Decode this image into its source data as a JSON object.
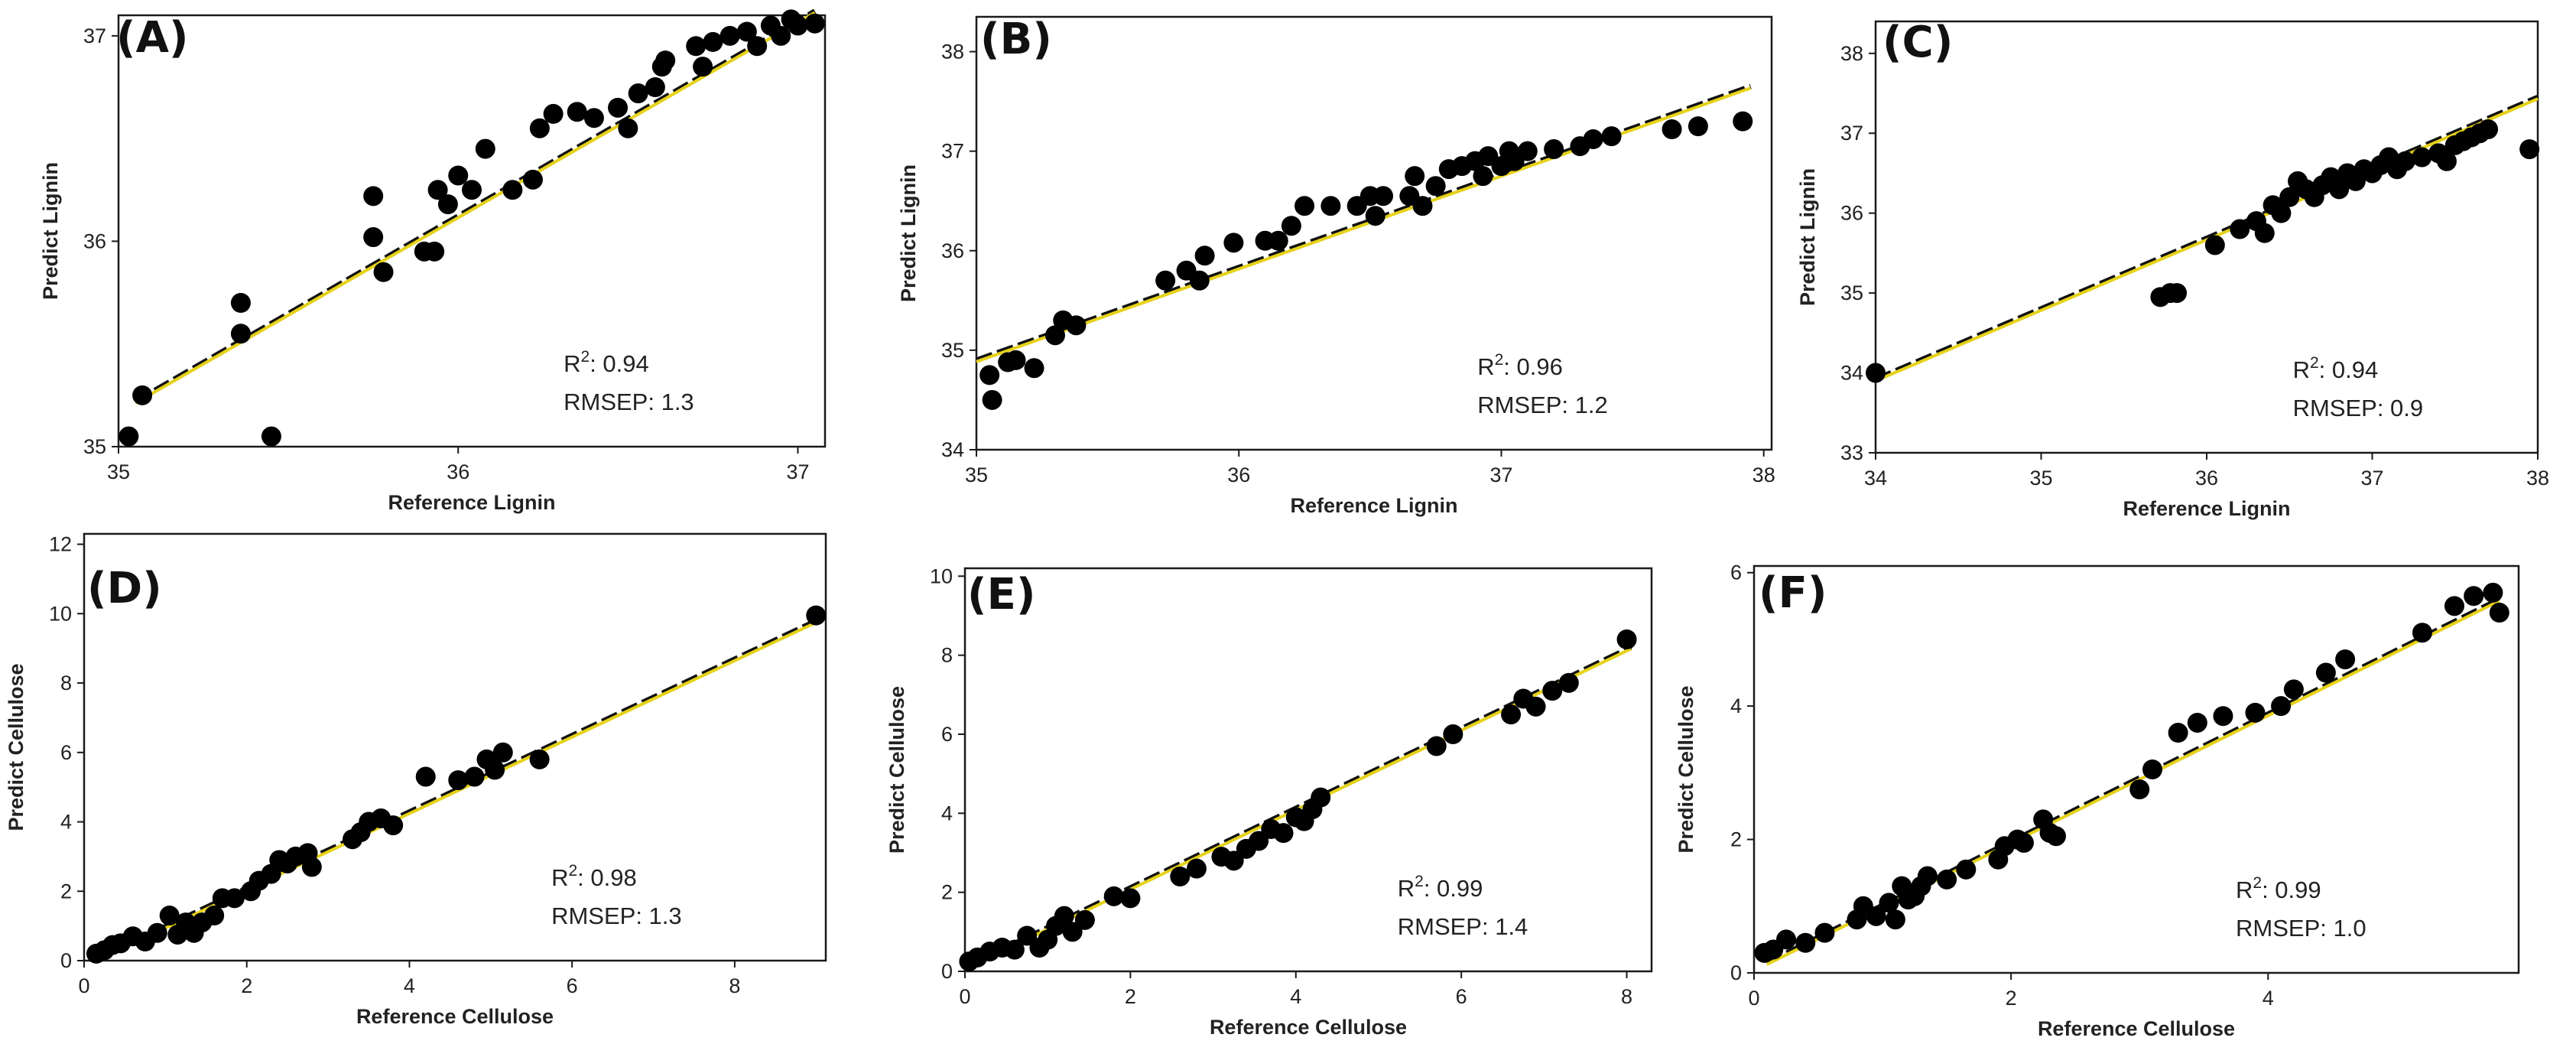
{
  "colors": {
    "points": "#000000",
    "fit_line": "#111111",
    "fit_line_yellow": "#e6d21a"
  },
  "chart_data": [
    {
      "panel": "(A)",
      "type": "scatter",
      "xlabel": "Reference Lignin",
      "ylabel": "Predict Lignin",
      "xlim": [
        35,
        37.08
      ],
      "ylim": [
        35,
        37.1
      ],
      "xticks": [
        "35",
        "36",
        "37"
      ],
      "yticks": [
        "35",
        "36",
        "37"
      ],
      "xtick_values": [
        35,
        36,
        37
      ],
      "ytick_values": [
        35,
        36,
        37
      ],
      "annotation": {
        "r2_label": "R",
        "r2_sup": "2",
        "r2_value": ": 0.94",
        "rmsep": "RMSEP: 1.3"
      },
      "fit_line": [
        [
          35.05,
          35.22
        ],
        [
          37.05,
          37.12
        ]
      ],
      "points": [
        [
          35.03,
          35.05
        ],
        [
          35.07,
          35.25
        ],
        [
          35.36,
          35.7
        ],
        [
          35.36,
          35.55
        ],
        [
          35.45,
          35.05
        ],
        [
          35.75,
          36.22
        ],
        [
          35.75,
          36.02
        ],
        [
          35.78,
          35.85
        ],
        [
          35.9,
          35.95
        ],
        [
          35.93,
          35.95
        ],
        [
          35.94,
          36.25
        ],
        [
          35.97,
          36.18
        ],
        [
          36.0,
          36.32
        ],
        [
          36.04,
          36.25
        ],
        [
          36.08,
          36.45
        ],
        [
          36.16,
          36.25
        ],
        [
          36.22,
          36.3
        ],
        [
          36.24,
          36.55
        ],
        [
          36.28,
          36.62
        ],
        [
          36.35,
          36.63
        ],
        [
          36.4,
          36.6
        ],
        [
          36.47,
          36.65
        ],
        [
          36.5,
          36.55
        ],
        [
          36.53,
          36.72
        ],
        [
          36.58,
          36.75
        ],
        [
          36.6,
          36.85
        ],
        [
          36.61,
          36.88
        ],
        [
          36.7,
          36.95
        ],
        [
          36.72,
          36.85
        ],
        [
          36.75,
          36.97
        ],
        [
          36.8,
          37.0
        ],
        [
          36.85,
          37.02
        ],
        [
          36.88,
          36.95
        ],
        [
          36.92,
          37.05
        ],
        [
          36.95,
          37.0
        ],
        [
          36.98,
          37.08
        ],
        [
          37.0,
          37.05
        ],
        [
          37.05,
          37.06
        ]
      ]
    },
    {
      "panel": "(B)",
      "type": "scatter",
      "xlabel": "Reference Lignin",
      "ylabel": "Predict Lignin",
      "xlim": [
        35,
        38.03
      ],
      "ylim": [
        34,
        38.35
      ],
      "xticks": [
        "35",
        "36",
        "37",
        "38"
      ],
      "yticks": [
        "34",
        "35",
        "36",
        "37",
        "38"
      ],
      "xtick_values": [
        35,
        36,
        37,
        38
      ],
      "ytick_values": [
        34,
        35,
        36,
        37,
        38
      ],
      "annotation": {
        "r2_label": "R",
        "r2_sup": "2",
        "r2_value": ": 0.96",
        "rmsep": "RMSEP: 1.2"
      },
      "fit_line": [
        [
          35.0,
          34.9
        ],
        [
          37.95,
          37.65
        ]
      ],
      "points": [
        [
          35.05,
          34.75
        ],
        [
          35.06,
          34.5
        ],
        [
          35.12,
          34.88
        ],
        [
          35.15,
          34.9
        ],
        [
          35.22,
          34.82
        ],
        [
          35.3,
          35.15
        ],
        [
          35.33,
          35.3
        ],
        [
          35.38,
          35.25
        ],
        [
          35.72,
          35.7
        ],
        [
          35.8,
          35.8
        ],
        [
          35.85,
          35.7
        ],
        [
          35.87,
          35.95
        ],
        [
          35.98,
          36.08
        ],
        [
          36.1,
          36.1
        ],
        [
          36.15,
          36.1
        ],
        [
          36.2,
          36.25
        ],
        [
          36.25,
          36.45
        ],
        [
          36.35,
          36.45
        ],
        [
          36.45,
          36.45
        ],
        [
          36.5,
          36.55
        ],
        [
          36.52,
          36.35
        ],
        [
          36.55,
          36.55
        ],
        [
          36.65,
          36.55
        ],
        [
          36.67,
          36.75
        ],
        [
          36.7,
          36.45
        ],
        [
          36.75,
          36.65
        ],
        [
          36.8,
          36.82
        ],
        [
          36.85,
          36.85
        ],
        [
          36.9,
          36.9
        ],
        [
          36.93,
          36.75
        ],
        [
          36.95,
          36.95
        ],
        [
          37.0,
          36.85
        ],
        [
          37.03,
          37.0
        ],
        [
          37.05,
          36.9
        ],
        [
          37.1,
          37.0
        ],
        [
          37.2,
          37.02
        ],
        [
          37.3,
          37.05
        ],
        [
          37.35,
          37.12
        ],
        [
          37.42,
          37.15
        ],
        [
          37.65,
          37.22
        ],
        [
          37.75,
          37.25
        ],
        [
          37.92,
          37.3
        ]
      ]
    },
    {
      "panel": "(C)",
      "type": "scatter",
      "xlabel": "Reference Lignin",
      "ylabel": "Predict Lignin",
      "xlim": [
        34,
        38
      ],
      "ylim": [
        33,
        38.4
      ],
      "xticks": [
        "34",
        "35",
        "36",
        "37",
        "38"
      ],
      "yticks": [
        "33",
        "34",
        "35",
        "36",
        "37",
        "38"
      ],
      "xtick_values": [
        34,
        35,
        36,
        37,
        38
      ],
      "ytick_values": [
        33,
        34,
        35,
        36,
        37,
        38
      ],
      "annotation": {
        "r2_label": "R",
        "r2_sup": "2",
        "r2_value": ": 0.94",
        "rmsep": "RMSEP: 0.9"
      },
      "fit_line": [
        [
          34.0,
          33.92
        ],
        [
          38.0,
          37.45
        ]
      ],
      "points": [
        [
          34.0,
          34.0
        ],
        [
          35.72,
          34.95
        ],
        [
          35.78,
          35.0
        ],
        [
          35.82,
          35.0
        ],
        [
          36.05,
          35.6
        ],
        [
          36.2,
          35.8
        ],
        [
          36.3,
          35.9
        ],
        [
          36.35,
          35.75
        ],
        [
          36.4,
          36.1
        ],
        [
          36.45,
          36.0
        ],
        [
          36.5,
          36.2
        ],
        [
          36.55,
          36.4
        ],
        [
          36.6,
          36.3
        ],
        [
          36.65,
          36.2
        ],
        [
          36.7,
          36.35
        ],
        [
          36.75,
          36.45
        ],
        [
          36.8,
          36.3
        ],
        [
          36.85,
          36.5
        ],
        [
          36.9,
          36.4
        ],
        [
          36.95,
          36.55
        ],
        [
          37.0,
          36.5
        ],
        [
          37.05,
          36.6
        ],
        [
          37.1,
          36.7
        ],
        [
          37.15,
          36.55
        ],
        [
          37.2,
          36.65
        ],
        [
          37.3,
          36.7
        ],
        [
          37.4,
          36.75
        ],
        [
          37.45,
          36.65
        ],
        [
          37.5,
          36.85
        ],
        [
          37.55,
          36.9
        ],
        [
          37.6,
          36.95
        ],
        [
          37.65,
          37.0
        ],
        [
          37.7,
          37.05
        ],
        [
          37.95,
          36.8
        ]
      ]
    },
    {
      "panel": "(D)",
      "type": "scatter",
      "xlabel": "Reference Cellulose",
      "ylabel": "Predict Cellulose",
      "xlim": [
        0,
        9.12
      ],
      "ylim": [
        0,
        12.3
      ],
      "xticks": [
        "0",
        "2",
        "4",
        "6",
        "8"
      ],
      "yticks": [
        "0",
        "2",
        "4",
        "6",
        "8",
        "10",
        "12"
      ],
      "xtick_values": [
        0,
        2,
        4,
        6,
        8
      ],
      "ytick_values": [
        0,
        2,
        4,
        6,
        8,
        10,
        12
      ],
      "annotation": {
        "r2_label": "R",
        "r2_sup": "2",
        "r2_value": ": 0.98",
        "rmsep": "RMSEP: 1.3"
      },
      "fit_line": [
        [
          0.2,
          0.1
        ],
        [
          9.1,
          9.9
        ]
      ],
      "points": [
        [
          0.15,
          0.2
        ],
        [
          0.25,
          0.3
        ],
        [
          0.35,
          0.45
        ],
        [
          0.45,
          0.5
        ],
        [
          0.6,
          0.7
        ],
        [
          0.75,
          0.55
        ],
        [
          0.9,
          0.8
        ],
        [
          1.05,
          1.3
        ],
        [
          1.15,
          0.75
        ],
        [
          1.25,
          1.1
        ],
        [
          1.35,
          0.8
        ],
        [
          1.45,
          1.1
        ],
        [
          1.6,
          1.3
        ],
        [
          1.7,
          1.8
        ],
        [
          1.85,
          1.8
        ],
        [
          2.05,
          2.0
        ],
        [
          2.15,
          2.3
        ],
        [
          2.3,
          2.5
        ],
        [
          2.4,
          2.9
        ],
        [
          2.5,
          2.8
        ],
        [
          2.6,
          3.0
        ],
        [
          2.75,
          3.1
        ],
        [
          2.8,
          2.7
        ],
        [
          3.3,
          3.5
        ],
        [
          3.4,
          3.7
        ],
        [
          3.5,
          4.0
        ],
        [
          3.65,
          4.1
        ],
        [
          3.8,
          3.9
        ],
        [
          4.2,
          5.3
        ],
        [
          4.6,
          5.2
        ],
        [
          4.8,
          5.3
        ],
        [
          4.95,
          5.8
        ],
        [
          5.05,
          5.5
        ],
        [
          5.15,
          6.0
        ],
        [
          5.6,
          5.8
        ],
        [
          9.0,
          9.95
        ]
      ]
    },
    {
      "panel": "(E)",
      "type": "scatter",
      "xlabel": "Reference Cellulose",
      "ylabel": "Predict Cellulose",
      "xlim": [
        0,
        8.3
      ],
      "ylim": [
        0,
        10.2
      ],
      "xticks": [
        "0",
        "2",
        "4",
        "6",
        "8"
      ],
      "yticks": [
        "0",
        "2",
        "4",
        "6",
        "8",
        "10"
      ],
      "xtick_values": [
        0,
        2,
        4,
        6,
        8
      ],
      "ytick_values": [
        0,
        2,
        4,
        6,
        8,
        10
      ],
      "annotation": {
        "r2_label": "R",
        "r2_sup": "2",
        "r2_value": ": 0.99",
        "rmsep": "RMSEP: 1.4"
      },
      "fit_line": [
        [
          0.0,
          0.1
        ],
        [
          8.05,
          8.2
        ]
      ],
      "points": [
        [
          0.05,
          0.25
        ],
        [
          0.15,
          0.35
        ],
        [
          0.3,
          0.5
        ],
        [
          0.45,
          0.6
        ],
        [
          0.6,
          0.55
        ],
        [
          0.75,
          0.9
        ],
        [
          0.9,
          0.6
        ],
        [
          1.0,
          0.8
        ],
        [
          1.1,
          1.15
        ],
        [
          1.2,
          1.4
        ],
        [
          1.3,
          1.0
        ],
        [
          1.45,
          1.3
        ],
        [
          1.8,
          1.9
        ],
        [
          2.0,
          1.85
        ],
        [
          2.6,
          2.4
        ],
        [
          2.8,
          2.6
        ],
        [
          3.1,
          2.9
        ],
        [
          3.25,
          2.8
        ],
        [
          3.4,
          3.1
        ],
        [
          3.55,
          3.3
        ],
        [
          3.7,
          3.6
        ],
        [
          3.85,
          3.5
        ],
        [
          4.0,
          3.9
        ],
        [
          4.1,
          3.8
        ],
        [
          4.2,
          4.1
        ],
        [
          4.3,
          4.4
        ],
        [
          5.7,
          5.7
        ],
        [
          5.9,
          6.0
        ],
        [
          6.6,
          6.5
        ],
        [
          6.75,
          6.9
        ],
        [
          6.9,
          6.7
        ],
        [
          7.1,
          7.1
        ],
        [
          7.3,
          7.3
        ],
        [
          8.0,
          8.4
        ]
      ]
    },
    {
      "panel": "(F)",
      "type": "scatter",
      "xlabel": "Reference Cellulose",
      "ylabel": "Predict Cellulose",
      "xlim": [
        0,
        5.95
      ],
      "ylim": [
        0,
        6.1
      ],
      "xticks": [
        "0",
        "2",
        "4"
      ],
      "yticks": [
        "0",
        "2",
        "4",
        "6"
      ],
      "xtick_values": [
        0,
        2,
        4
      ],
      "ytick_values": [
        0,
        2,
        4,
        6
      ],
      "annotation": {
        "r2_label": "R",
        "r2_sup": "2",
        "r2_value": ": 0.99",
        "rmsep": "RMSEP: 1.0"
      },
      "fit_line": [
        [
          0.1,
          0.15
        ],
        [
          5.8,
          5.6
        ]
      ],
      "points": [
        [
          0.08,
          0.3
        ],
        [
          0.15,
          0.35
        ],
        [
          0.25,
          0.5
        ],
        [
          0.4,
          0.45
        ],
        [
          0.55,
          0.6
        ],
        [
          0.8,
          0.8
        ],
        [
          0.85,
          1.0
        ],
        [
          0.95,
          0.85
        ],
        [
          1.05,
          1.05
        ],
        [
          1.1,
          0.8
        ],
        [
          1.15,
          1.3
        ],
        [
          1.2,
          1.1
        ],
        [
          1.25,
          1.15
        ],
        [
          1.3,
          1.3
        ],
        [
          1.35,
          1.45
        ],
        [
          1.5,
          1.4
        ],
        [
          1.65,
          1.55
        ],
        [
          1.9,
          1.7
        ],
        [
          1.95,
          1.9
        ],
        [
          2.05,
          2.0
        ],
        [
          2.1,
          1.95
        ],
        [
          2.25,
          2.3
        ],
        [
          2.3,
          2.1
        ],
        [
          2.35,
          2.05
        ],
        [
          3.0,
          2.75
        ],
        [
          3.1,
          3.05
        ],
        [
          3.3,
          3.6
        ],
        [
          3.45,
          3.75
        ],
        [
          3.65,
          3.85
        ],
        [
          3.9,
          3.9
        ],
        [
          4.1,
          4.0
        ],
        [
          4.2,
          4.25
        ],
        [
          4.45,
          4.5
        ],
        [
          4.6,
          4.7
        ],
        [
          5.2,
          5.1
        ],
        [
          5.45,
          5.5
        ],
        [
          5.6,
          5.65
        ],
        [
          5.75,
          5.7
        ],
        [
          5.8,
          5.4
        ]
      ]
    }
  ]
}
